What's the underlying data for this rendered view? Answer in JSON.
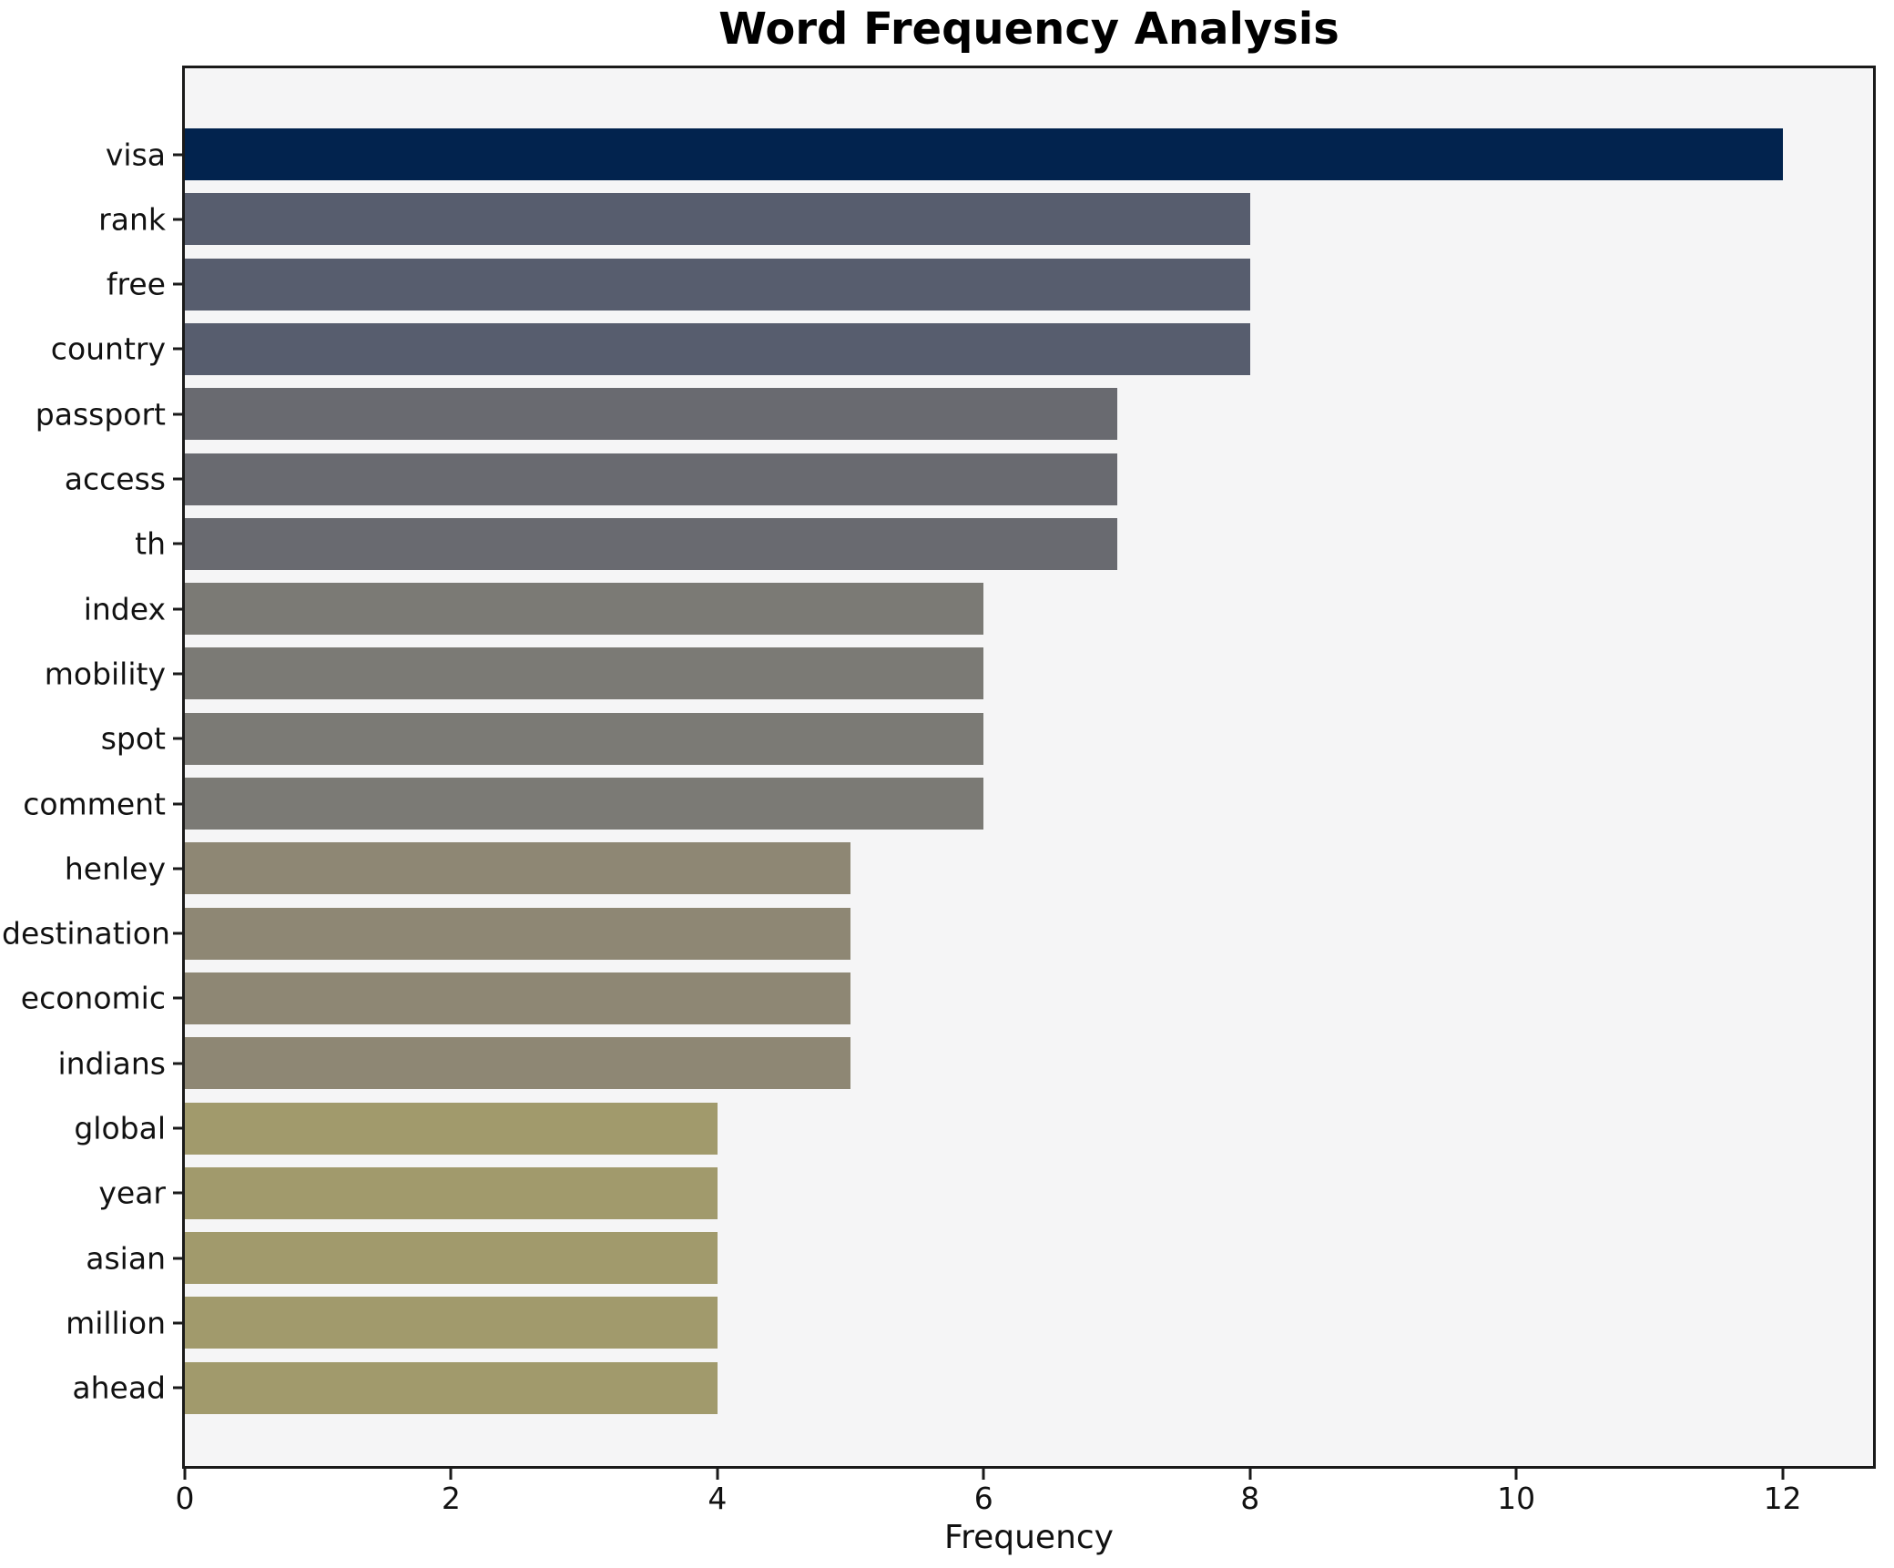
{
  "title": "Word Frequency Analysis",
  "chart_data": {
    "type": "bar",
    "orientation": "horizontal",
    "title": "Word Frequency Analysis",
    "xlabel": "Frequency",
    "ylabel": "",
    "categories": [
      "visa",
      "rank",
      "free",
      "country",
      "passport",
      "access",
      "th",
      "index",
      "mobility",
      "spot",
      "comment",
      "henley",
      "destination",
      "economic",
      "indians",
      "global",
      "year",
      "asian",
      "million",
      "ahead"
    ],
    "values": [
      12,
      8,
      8,
      8,
      7,
      7,
      7,
      6,
      6,
      6,
      6,
      5,
      5,
      5,
      5,
      4,
      4,
      4,
      4,
      4
    ],
    "bar_colors": [
      "#02234e",
      "#575d6e",
      "#575d6e",
      "#575d6e",
      "#696a70",
      "#696a70",
      "#696a70",
      "#7b7a75",
      "#7b7a75",
      "#7b7a75",
      "#7b7a75",
      "#8e8774",
      "#8e8774",
      "#8e8774",
      "#8e8774",
      "#a19a6c",
      "#a19a6c",
      "#a19a6c",
      "#a19a6c",
      "#a19a6c"
    ],
    "xticks": [
      0,
      2,
      4,
      6,
      8,
      10,
      12
    ],
    "xlim": [
      0,
      12.68
    ],
    "grid": false,
    "legend": "none",
    "plot_background": "#f5f5f6",
    "figure_background": "#ffffff",
    "spine_color": "#1a1a1a"
  }
}
